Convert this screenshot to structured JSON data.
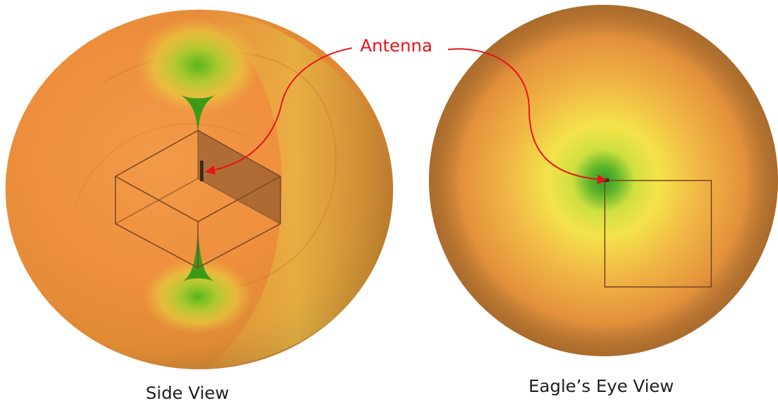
{
  "annotation": {
    "label": "Antenna",
    "color": "#e8121a"
  },
  "views": [
    {
      "caption": "Side View"
    },
    {
      "caption": "Eagle’s Eye View"
    }
  ],
  "colors": {
    "sphere_orange": "#f08a3a",
    "sphere_edge": "#c06c2a",
    "null_green": "#3c9a17",
    "mid_yellow": "#f1e14a",
    "box_line": "#7a4a22"
  }
}
